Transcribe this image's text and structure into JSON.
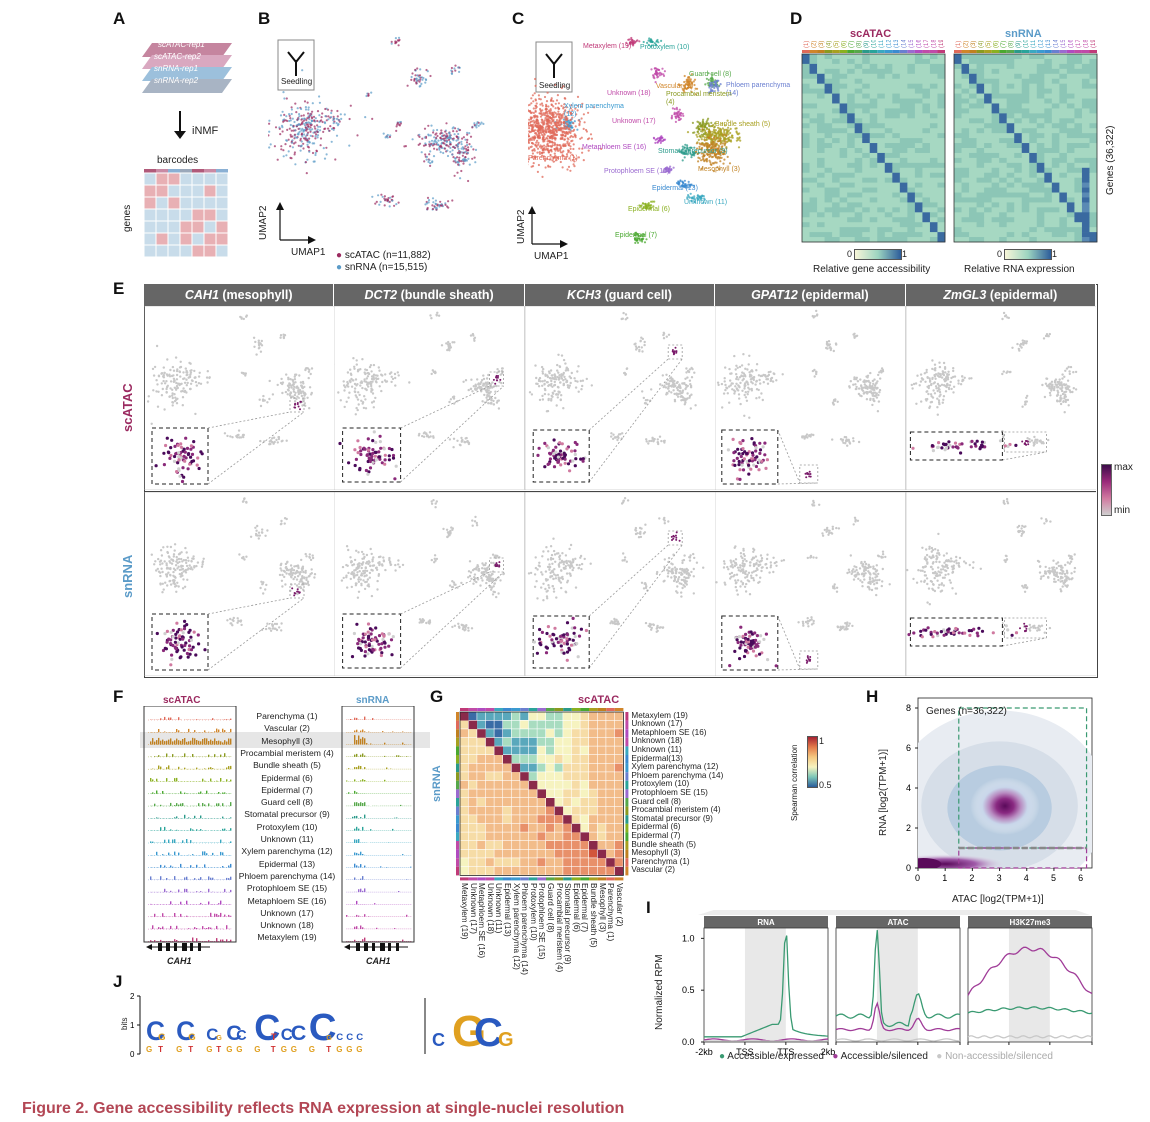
{
  "caption": "Figure 2.  Gene accessibility reflects RNA expression at single-nuclei resolution",
  "panels": {
    "A": "A",
    "B": "B",
    "C": "C",
    "D": "D",
    "E": "E",
    "F": "F",
    "G": "G",
    "H": "H",
    "I": "I",
    "J": "J"
  },
  "panelA": {
    "layers": [
      "scATAC-rep1",
      "scATAC-rep2",
      "snRNA-rep1",
      "snRNA-rep2"
    ],
    "method": "iNMF",
    "xlabel": "barcodes",
    "ylabel": "genes"
  },
  "panelB": {
    "seedling": "Seedling",
    "umap1": "UMAP1",
    "umap2": "UMAP2",
    "legend": [
      {
        "label": "scATAC (n=11,882)",
        "color": "#9b2a60"
      },
      {
        "label": "snRNA (n=15,515)",
        "color": "#5b9bc8"
      }
    ]
  },
  "panelC": {
    "seedling": "Seedling",
    "umap1": "UMAP1",
    "umap2": "UMAP2",
    "clusters": [
      {
        "label": "Metaxylem (19)",
        "color": "#c03a78"
      },
      {
        "label": "Protoxylem (10)",
        "color": "#2aa49a"
      },
      {
        "label": "Guard cell (8)",
        "color": "#56a84a"
      },
      {
        "label": "Phloem parenchyma (14)",
        "color": "#6a7fd0"
      },
      {
        "label": "Unknown (18)",
        "color": "#c04aa8"
      },
      {
        "label": "Vascular (2)",
        "color": "#d0852a"
      },
      {
        "label": "Xylem parenchyma (12)",
        "color": "#3a9ad0"
      },
      {
        "label": "Procambial meristem (4)",
        "color": "#8a9a20"
      },
      {
        "label": "Unknown (17)",
        "color": "#c04aa8"
      },
      {
        "label": "Bundle sheath (5)",
        "color": "#a8a020"
      },
      {
        "label": "Metaphloem SE (16)",
        "color": "#b04ac0"
      },
      {
        "label": "Stomatal precursor (9)",
        "color": "#2a9a8a"
      },
      {
        "label": "Parenchyma (1)",
        "color": "#e06a5a"
      },
      {
        "label": "Protophloem SE (15)",
        "color": "#9a6ad0"
      },
      {
        "label": "Mesophyll (3)",
        "color": "#c08020"
      },
      {
        "label": "Epidermal (13)",
        "color": "#3a8ad0"
      },
      {
        "label": "Unknown (11)",
        "color": "#3aa8c0"
      },
      {
        "label": "Epidermal (6)",
        "color": "#8ab020"
      },
      {
        "label": "Epidermal (7)",
        "color": "#4aa830"
      }
    ]
  },
  "panelD": {
    "left_title": "scATAC",
    "right_title": "snRNA",
    "col_labels": [
      "(1)",
      "(2)",
      "(3)",
      "(4)",
      "(5)",
      "(6)",
      "(7)",
      "(8)",
      "(9)",
      "(10)",
      "(11)",
      "(12)",
      "(13)",
      "(14)",
      "(15)",
      "(16)",
      "(17)",
      "(18)",
      "(19)"
    ],
    "ylabel": "Genes (36,322)",
    "scale_min": "0",
    "scale_max": "1",
    "left_caption": "Relative gene accessibility",
    "right_caption": "Relative RNA expression"
  },
  "panelE": {
    "columns": [
      {
        "gene": "CAH1",
        "tissue": " (mesophyll)"
      },
      {
        "gene": "DCT2",
        "tissue": " (bundle sheath)"
      },
      {
        "gene": "KCH3",
        "tissue": " (guard cell)"
      },
      {
        "gene": "GPAT12",
        "tissue": " (epidermal)"
      },
      {
        "gene": "ZmGL3",
        "tissue": " (epidermal)"
      }
    ],
    "rows": [
      "scATAC",
      "snRNA"
    ],
    "legend_max": "max",
    "legend_min": "min"
  },
  "panelF": {
    "left_title": "scATAC",
    "right_title": "snRNA",
    "gene": "CAH1",
    "tracks": [
      {
        "label": "Parenchyma (1)",
        "color": "#e06a5a"
      },
      {
        "label": "Vascular (2)",
        "color": "#d0852a"
      },
      {
        "label": "Mesophyll (3)",
        "color": "#c08020"
      },
      {
        "label": "Procambial meristem (4)",
        "color": "#8a9a20"
      },
      {
        "label": "Bundle sheath (5)",
        "color": "#a8a020"
      },
      {
        "label": "Epidermal (6)",
        "color": "#8ab020"
      },
      {
        "label": "Epidermal (7)",
        "color": "#4aa830"
      },
      {
        "label": "Guard cell (8)",
        "color": "#56a84a"
      },
      {
        "label": "Stomatal precursor (9)",
        "color": "#2a9a8a"
      },
      {
        "label": "Protoxylem (10)",
        "color": "#2aa49a"
      },
      {
        "label": "Unknown (11)",
        "color": "#3aa8c0"
      },
      {
        "label": "Xylem parenchyma (12)",
        "color": "#3a9ad0"
      },
      {
        "label": "Epidermal (13)",
        "color": "#3a8ad0"
      },
      {
        "label": "Phloem parenchyma (14)",
        "color": "#6a7fd0"
      },
      {
        "label": "Protophloem SE (15)",
        "color": "#9a6ad0"
      },
      {
        "label": "Metaphloem SE (16)",
        "color": "#b04ac0"
      },
      {
        "label": "Unknown (17)",
        "color": "#c04aa8"
      },
      {
        "label": "Unknown (18)",
        "color": "#c04aa8"
      },
      {
        "label": "Metaxylem (19)",
        "color": "#c03a78"
      }
    ]
  },
  "panelG": {
    "top_title": "scATAC",
    "side_title": "snRNA",
    "row_labels": [
      "Metaxylem (19)",
      "Unknown (17)",
      "Metaphloem SE (16)",
      "Unknown (18)",
      "Unknown (11)",
      "Epidermal(13)",
      "Xylem parenchyma (12)",
      "Phloem parenchyma (14)",
      "Protoxylem (10)",
      "Protophloem SE (15)",
      "Guard cell (8)",
      "Procambial meristem (4)",
      "Stomatal precursor (9)",
      "Epidermal (6)",
      "Epidermal (7)",
      "Bundle sheath (5)",
      "Mesophyll (3)",
      "Parenchyma (1)",
      "Vascular (2)"
    ],
    "col_labels": [
      "Metaxylem (19)",
      "Unknown (17)",
      "Metaphloem SE (16)",
      "Unknown (18)",
      "Unknown (11)",
      "Epidermal (13)",
      "Xylem parenchyma (12)",
      "Phloem parenchyma (14)",
      "Protoxylem (10)",
      "Protophloem SE (15)",
      "Guard cell (8)",
      "Procambial meristem (4)",
      "Stomatal precursor (9)",
      "Epidermal (6)",
      "Epidermal (7)",
      "Bundle sheath (5)",
      "Mesophyll (3)",
      "Parenchyma (1)",
      "Vascular (2)"
    ],
    "scale_title": "Spearman correlation",
    "scale_max": "1",
    "scale_min": "0.5"
  },
  "chart_data": [
    {
      "type": "heatmap",
      "title": "Genes (n=36,322)",
      "xlabel": "ATAC [log2(TPM+1)]",
      "ylabel": "RNA [log2(TPM+1)]",
      "xlim": [
        0,
        6.4
      ],
      "ylim": [
        0,
        8.5
      ],
      "xticks": [
        "0",
        "1",
        "2",
        "3",
        "4",
        "5",
        "6"
      ],
      "yticks": [
        "0",
        "2",
        "4",
        "6",
        "8"
      ],
      "density_peak": {
        "x": 3.2,
        "y": 3.1
      },
      "low_band_y": 0.2
    },
    {
      "type": "line",
      "facets": [
        "RNA",
        "ATAC",
        "H3K27me3"
      ],
      "ylabel": "Normalized RPM",
      "yticks": [
        "0.0",
        "0.5",
        "1.0"
      ],
      "xticks": [
        "-2kb",
        "TSS",
        "TTS",
        "2kb"
      ],
      "series": [
        {
          "name": "Accessible/expressed",
          "color": "#3a9a72"
        },
        {
          "name": "Accessible/silenced",
          "color": "#a03c98"
        },
        {
          "name": "Non-accessible/silenced",
          "color": "#c8c8c8"
        }
      ]
    }
  ],
  "panelJ": {
    "ylabel": "bits",
    "ticks": [
      "0",
      "1",
      "2"
    ]
  }
}
